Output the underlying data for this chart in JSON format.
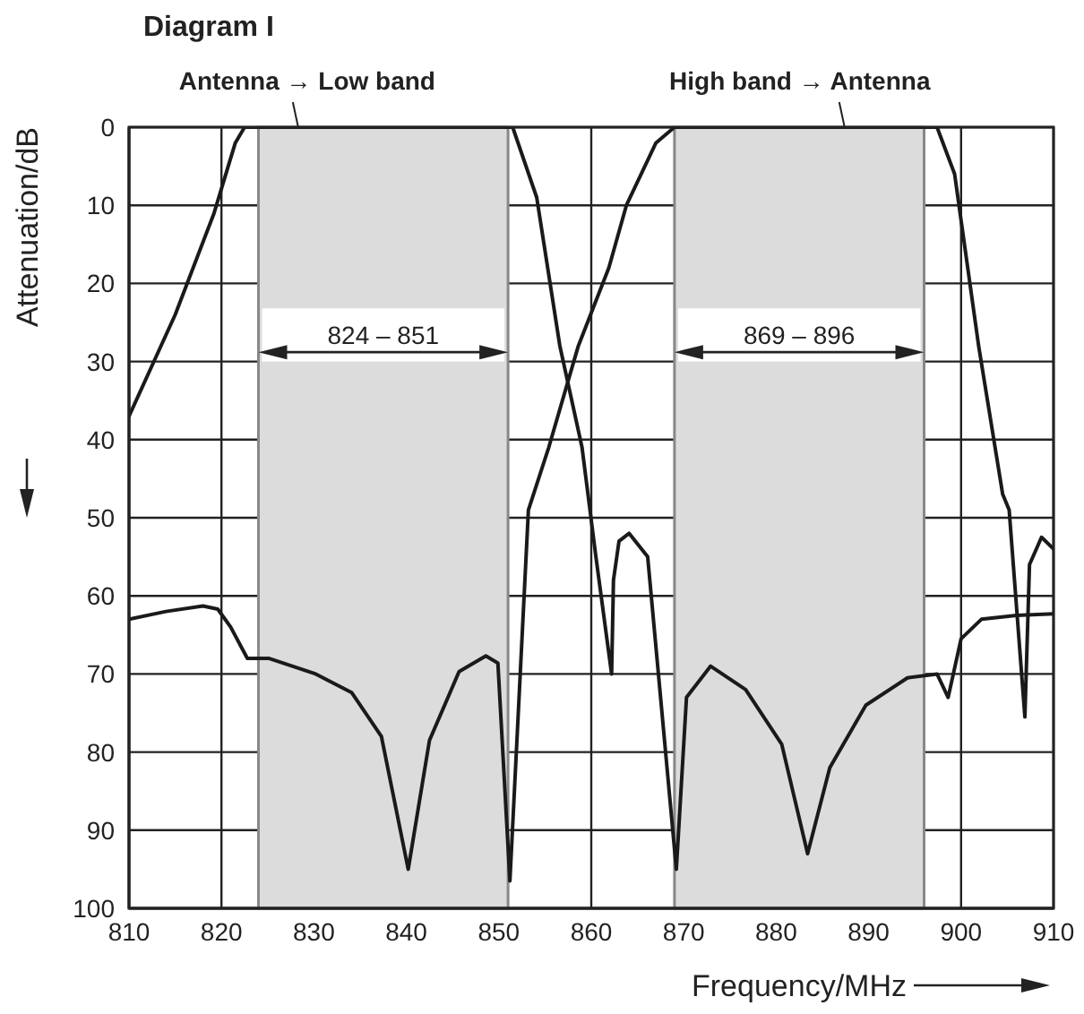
{
  "chart_data": {
    "type": "line",
    "title": "Diagram I",
    "xlabel": "Frequency/MHz",
    "ylabel": "Attenuation/dB",
    "xlim": [
      810,
      910
    ],
    "xticks": [
      810,
      820,
      830,
      840,
      850,
      860,
      870,
      880,
      890,
      900,
      910
    ],
    "ylim": [
      100,
      0
    ],
    "yticks": [
      0,
      10,
      20,
      30,
      40,
      50,
      60,
      70,
      80,
      90,
      100
    ],
    "grid": true,
    "marker": "none",
    "line_style": "solid",
    "annotations": [
      {
        "text": "Antenna → Low band",
        "x": 828.3,
        "y": 0
      },
      {
        "text": "High band → Antenna",
        "x": 887.4,
        "y": 0
      }
    ],
    "bands": [
      {
        "axis": "x",
        "from": 824,
        "to": 851,
        "label": "824 – 851",
        "color": "#dcdcdc"
      },
      {
        "axis": "x",
        "from": 869,
        "to": 896,
        "label": "869 – 896",
        "color": "#dcdcdc"
      }
    ],
    "series": [
      {
        "color": "#1a1a1a",
        "x": [
          810,
          815,
          819.2,
          821.5,
          822.5,
          835,
          851.5,
          854.1,
          856.6,
          859,
          860.5,
          862.2,
          862.4,
          863,
          864.1,
          866.1,
          869.2,
          870.3,
          872.9,
          876.7,
          880.6,
          883.4,
          885.8,
          889.7,
          894.2,
          897.4,
          898.6,
          900,
          902.2,
          906,
          910
        ],
        "values": [
          37,
          24,
          11,
          2,
          0,
          0,
          0,
          9,
          28,
          41,
          55,
          70,
          58,
          53,
          52,
          55,
          95,
          73,
          69,
          72,
          79,
          93,
          82,
          74,
          70.5,
          70,
          73,
          65.5,
          63,
          62.5,
          62.3
        ]
      },
      {
        "color": "#1a1a1a",
        "x": [
          810,
          814,
          818,
          819.6,
          821,
          822.8,
          825.1,
          830.2,
          834.1,
          837.3,
          840.2,
          842.5,
          845.7,
          848.6,
          849.9,
          851.2,
          853.2,
          855.4,
          858.6,
          861.9,
          863.8,
          867,
          869,
          885,
          897.4,
          899.3,
          901.9,
          904.5,
          905.2,
          906.9,
          907.4,
          908.7,
          910
        ],
        "values": [
          63,
          62,
          61.3,
          61.7,
          64,
          68,
          68,
          70,
          72.4,
          78,
          95,
          78.5,
          69.7,
          67.7,
          68.6,
          96.5,
          49,
          41,
          28,
          18,
          10,
          2,
          0,
          0,
          0,
          6,
          28,
          47,
          49,
          75.5,
          56,
          52.5,
          54
        ]
      }
    ]
  }
}
